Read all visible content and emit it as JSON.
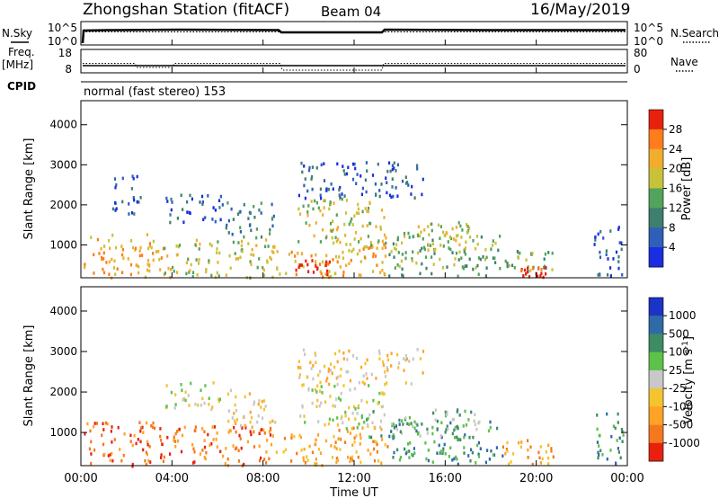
{
  "header": {
    "title": "Zhongshan Station (fitACF)",
    "beam": "Beam 04",
    "date": "16/May/2019"
  },
  "strips": {
    "nsky_label": "N.Sky",
    "nsky_ticks": [
      "10^5",
      "10^0"
    ],
    "nsearch_label": "N.Search",
    "nsearch_ticks": [
      "10^5",
      "10^0"
    ],
    "freq_label": "Freq.",
    "freq_unit": "[MHz]",
    "freq_ticks": [
      "18",
      "8"
    ],
    "nave_label": "Nave",
    "nave_ticks": [
      "80",
      "0"
    ],
    "cpid_label": "CPID",
    "cpid_text": "normal (fast stereo) 153"
  },
  "time_axis": {
    "label": "Time UT",
    "ticks": [
      "00:00",
      "04:00",
      "08:00",
      "12:00",
      "16:00",
      "20:00",
      "00:00"
    ]
  },
  "chart_data": [
    {
      "type": "heatmap",
      "name": "power",
      "ylabel": "Slant Range [km]",
      "yticks": [
        1000,
        2000,
        3000,
        4000
      ],
      "ylim": [
        180,
        4600
      ],
      "xlim": [
        0,
        24
      ],
      "colorbar": {
        "label": "Power [dB]",
        "tick_labels": [
          "4",
          "8",
          "12",
          "16",
          "20",
          "24",
          "28"
        ],
        "colors": [
          "#1a2de0",
          "#2f5fb8",
          "#3e7f6f",
          "#52a35b",
          "#c8c23a",
          "#f0ad2e",
          "#ff7d1a",
          "#e8210f"
        ]
      },
      "regions": [
        {
          "t0": 0.1,
          "t1": 3.6,
          "r0": 200,
          "r1": 1300,
          "level": 5
        },
        {
          "t0": 3.6,
          "t1": 8.5,
          "r0": 200,
          "r1": 1200,
          "level": 4
        },
        {
          "t0": 8.5,
          "t1": 11.3,
          "r0": 220,
          "r1": 900,
          "level": 5
        },
        {
          "t0": 9.4,
          "t1": 10.9,
          "r0": 300,
          "r1": 650,
          "level": 7
        },
        {
          "t0": 10.9,
          "t1": 13.5,
          "r0": 250,
          "r1": 1200,
          "level": 5
        },
        {
          "t0": 13.5,
          "t1": 18.5,
          "r0": 250,
          "r1": 1300,
          "level": 3
        },
        {
          "t0": 18.5,
          "t1": 20.8,
          "r0": 230,
          "r1": 900,
          "level": 3
        },
        {
          "t0": 19.3,
          "t1": 20.4,
          "r0": 230,
          "r1": 550,
          "level": 7
        },
        {
          "t0": 22.5,
          "t1": 23.8,
          "r0": 250,
          "r1": 1500,
          "level": 1
        },
        {
          "t0": 9.5,
          "t1": 13.3,
          "r0": 1100,
          "r1": 2200,
          "level": 4
        },
        {
          "t0": 1.3,
          "t1": 2.6,
          "r0": 1800,
          "r1": 2800,
          "level": 1
        },
        {
          "t0": 3.6,
          "t1": 6.2,
          "r0": 1600,
          "r1": 2300,
          "level": 1
        },
        {
          "t0": 6.3,
          "t1": 8.5,
          "r0": 1200,
          "r1": 2100,
          "level": 2
        },
        {
          "t0": 12.5,
          "t1": 17.5,
          "r0": 900,
          "r1": 1600,
          "level": 4
        },
        {
          "t0": 9.5,
          "t1": 15.0,
          "r0": 2200,
          "r1": 3100,
          "level": 1
        }
      ]
    },
    {
      "type": "heatmap",
      "name": "velocity",
      "ylabel": "Slant Range [km]",
      "yticks": [
        1000,
        2000,
        3000,
        4000
      ],
      "ylim": [
        180,
        4600
      ],
      "xlim": [
        0,
        24
      ],
      "colorbar": {
        "label": "Velocity [m s^-1]",
        "tick_labels": [
          "1000",
          "500",
          "100",
          "25",
          "-25",
          "-100",
          "-500",
          "-1000"
        ],
        "colors": [
          "#1c33c7",
          "#2f6aa8",
          "#3d8c64",
          "#5cc24a",
          "#c8c8c8",
          "#f5c330",
          "#ffa326",
          "#f5791c",
          "#e8210f"
        ]
      },
      "regions": [
        {
          "t0": 0.1,
          "t1": 3.6,
          "r0": 200,
          "r1": 1300,
          "level": 7
        },
        {
          "t0": 3.6,
          "t1": 8.5,
          "r0": 200,
          "r1": 1200,
          "level": 7
        },
        {
          "t0": 8.5,
          "t1": 11.3,
          "r0": 220,
          "r1": 1000,
          "level": 6
        },
        {
          "t0": 10.9,
          "t1": 13.5,
          "r0": 250,
          "r1": 1200,
          "level": 6
        },
        {
          "t0": 13.5,
          "t1": 18.5,
          "r0": 250,
          "r1": 1300,
          "level": 2
        },
        {
          "t0": 18.5,
          "t1": 20.8,
          "r0": 230,
          "r1": 900,
          "level": 6
        },
        {
          "t0": 22.5,
          "t1": 23.8,
          "r0": 250,
          "r1": 1500,
          "level": 2
        },
        {
          "t0": 9.5,
          "t1": 13.3,
          "r0": 1100,
          "r1": 2200,
          "level": 4
        },
        {
          "t0": 3.6,
          "t1": 6.2,
          "r0": 1600,
          "r1": 2300,
          "level": 4
        },
        {
          "t0": 6.3,
          "t1": 8.5,
          "r0": 1200,
          "r1": 2100,
          "level": 5
        },
        {
          "t0": 12.5,
          "t1": 17.5,
          "r0": 900,
          "r1": 1600,
          "level": 3
        },
        {
          "t0": 9.5,
          "t1": 15.0,
          "r0": 2200,
          "r1": 3100,
          "level": 5
        }
      ]
    }
  ]
}
